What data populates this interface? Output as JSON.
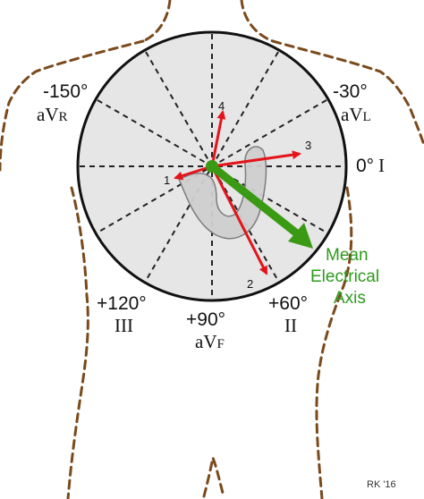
{
  "angles": {
    "aVR": "-150°",
    "aVL": "-30°",
    "I": "0°",
    "II": "+60°",
    "aVF": "+90°",
    "III": "+120°"
  },
  "leads": {
    "aVR": {
      "main": "aV",
      "sub": "R"
    },
    "aVL": {
      "main": "aV",
      "sub": "L"
    },
    "I": "I",
    "II": "II",
    "aVF": {
      "main": "aV",
      "sub": "F"
    },
    "III": "III"
  },
  "vectors": [
    "1",
    "2",
    "3",
    "4"
  ],
  "mean_axis_label": [
    "Mean",
    "Electrical",
    "Axis"
  ],
  "signature": "RK '16",
  "colors": {
    "circle_fill": "#e6e6e6",
    "vector_red": "#e4141b",
    "mean_axis_green": "#3a9a14",
    "body_outline": "#7a4a1c",
    "heart_fill": "#cfcfcf"
  }
}
